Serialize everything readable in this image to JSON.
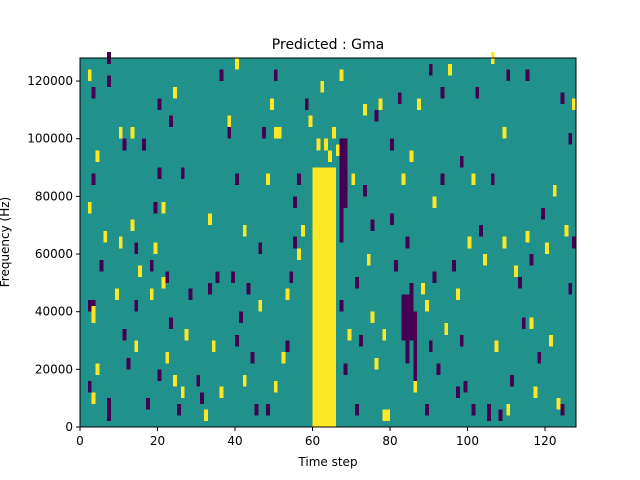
{
  "chart_data": {
    "type": "heatmap",
    "title": "Predicted : Gma",
    "xlabel": "Time step",
    "ylabel": "Frequency (Hz)",
    "xlim": [
      0,
      128
    ],
    "ylim": [
      0,
      128000
    ],
    "grid": false,
    "x_ticks": [
      0,
      20,
      40,
      60,
      80,
      100,
      120
    ],
    "y_ticks": [
      0,
      20000,
      40000,
      60000,
      80000,
      100000,
      120000
    ],
    "n_time_steps": 128,
    "n_freq_bins": 64,
    "colormap": "viridis",
    "cell_colors": {
      "low": "#440154",
      "mid": "#21918c",
      "high": "#fde725"
    },
    "background_level": "mid",
    "bright_band": {
      "level": "high",
      "start_step": 60,
      "end_step": 66,
      "freq_top": 90000
    },
    "dark_columns": [
      {
        "step": 67,
        "freq_from": 64000,
        "freq_to": 100000
      },
      {
        "step": 68,
        "freq_from": 76000,
        "freq_to": 100000
      },
      {
        "step": 83,
        "freq_from": 30000,
        "freq_to": 46000
      },
      {
        "step": 84,
        "freq_from": 22000,
        "freq_to": 46000
      },
      {
        "step": 85,
        "freq_from": 30000,
        "freq_to": 50000
      },
      {
        "step": 86,
        "freq_from": 16000,
        "freq_to": 40000
      }
    ],
    "cells": [
      {
        "t": 7,
        "f": 2000,
        "v": "low"
      },
      {
        "t": 7,
        "f": 4000,
        "v": "low"
      },
      {
        "t": 7,
        "f": 6000,
        "v": "low"
      },
      {
        "t": 2,
        "f": 12000,
        "v": "low"
      },
      {
        "t": 3,
        "f": 8000,
        "v": "high"
      },
      {
        "t": 4,
        "f": 18000,
        "v": "high"
      },
      {
        "t": 2,
        "f": 40000,
        "v": "low"
      },
      {
        "t": 3,
        "f": 40000,
        "v": "low"
      },
      {
        "t": 3,
        "f": 36000,
        "v": "high"
      },
      {
        "t": 3,
        "f": 38000,
        "v": "high"
      },
      {
        "t": 5,
        "f": 54000,
        "v": "low"
      },
      {
        "t": 6,
        "f": 64000,
        "v": "high"
      },
      {
        "t": 2,
        "f": 74000,
        "v": "high"
      },
      {
        "t": 3,
        "f": 84000,
        "v": "low"
      },
      {
        "t": 4,
        "f": 92000,
        "v": "high"
      },
      {
        "t": 2,
        "f": 120000,
        "v": "high"
      },
      {
        "t": 3,
        "f": 114000,
        "v": "low"
      },
      {
        "t": 7,
        "f": 126000,
        "v": "low"
      },
      {
        "t": 7,
        "f": 118000,
        "v": "low"
      },
      {
        "t": 10,
        "f": 100000,
        "v": "high"
      },
      {
        "t": 11,
        "f": 96000,
        "v": "low"
      },
      {
        "t": 13,
        "f": 100000,
        "v": "high"
      },
      {
        "t": 9,
        "f": 44000,
        "v": "high"
      },
      {
        "t": 10,
        "f": 62000,
        "v": "high"
      },
      {
        "t": 11,
        "f": 30000,
        "v": "low"
      },
      {
        "t": 12,
        "f": 20000,
        "v": "low"
      },
      {
        "t": 13,
        "f": 68000,
        "v": "high"
      },
      {
        "t": 14,
        "f": 60000,
        "v": "low"
      },
      {
        "t": 15,
        "f": 52000,
        "v": "high"
      },
      {
        "t": 14,
        "f": 40000,
        "v": "low"
      },
      {
        "t": 14,
        "f": 26000,
        "v": "high"
      },
      {
        "t": 16,
        "f": 96000,
        "v": "low"
      },
      {
        "t": 17,
        "f": 6000,
        "v": "low"
      },
      {
        "t": 18,
        "f": 44000,
        "v": "high"
      },
      {
        "t": 18,
        "f": 54000,
        "v": "low"
      },
      {
        "t": 19,
        "f": 60000,
        "v": "high"
      },
      {
        "t": 19,
        "f": 74000,
        "v": "low"
      },
      {
        "t": 20,
        "f": 110000,
        "v": "low"
      },
      {
        "t": 20,
        "f": 86000,
        "v": "low"
      },
      {
        "t": 21,
        "f": 74000,
        "v": "high"
      },
      {
        "t": 21,
        "f": 48000,
        "v": "high"
      },
      {
        "t": 22,
        "f": 50000,
        "v": "low"
      },
      {
        "t": 22,
        "f": 22000,
        "v": "high"
      },
      {
        "t": 20,
        "f": 16000,
        "v": "low"
      },
      {
        "t": 23,
        "f": 104000,
        "v": "low"
      },
      {
        "t": 24,
        "f": 114000,
        "v": "high"
      },
      {
        "t": 23,
        "f": 34000,
        "v": "low"
      },
      {
        "t": 24,
        "f": 14000,
        "v": "high"
      },
      {
        "t": 25,
        "f": 4000,
        "v": "low"
      },
      {
        "t": 26,
        "f": 10000,
        "v": "high"
      },
      {
        "t": 27,
        "f": 30000,
        "v": "high"
      },
      {
        "t": 26,
        "f": 86000,
        "v": "low"
      },
      {
        "t": 28,
        "f": 44000,
        "v": "low"
      },
      {
        "t": 30,
        "f": 14000,
        "v": "low"
      },
      {
        "t": 31,
        "f": 8000,
        "v": "low"
      },
      {
        "t": 32,
        "f": 2000,
        "v": "high"
      },
      {
        "t": 33,
        "f": 46000,
        "v": "low"
      },
      {
        "t": 33,
        "f": 70000,
        "v": "high"
      },
      {
        "t": 34,
        "f": 26000,
        "v": "high"
      },
      {
        "t": 35,
        "f": 50000,
        "v": "low"
      },
      {
        "t": 36,
        "f": 120000,
        "v": "low"
      },
      {
        "t": 36,
        "f": 10000,
        "v": "high"
      },
      {
        "t": 38,
        "f": 100000,
        "v": "low"
      },
      {
        "t": 38,
        "f": 104000,
        "v": "high"
      },
      {
        "t": 39,
        "f": 50000,
        "v": "low"
      },
      {
        "t": 40,
        "f": 28000,
        "v": "low"
      },
      {
        "t": 40,
        "f": 124000,
        "v": "high"
      },
      {
        "t": 40,
        "f": 84000,
        "v": "low"
      },
      {
        "t": 41,
        "f": 36000,
        "v": "low"
      },
      {
        "t": 42,
        "f": 66000,
        "v": "high"
      },
      {
        "t": 42,
        "f": 14000,
        "v": "high"
      },
      {
        "t": 43,
        "f": 46000,
        "v": "low"
      },
      {
        "t": 44,
        "f": 22000,
        "v": "low"
      },
      {
        "t": 45,
        "f": 4000,
        "v": "low"
      },
      {
        "t": 46,
        "f": 60000,
        "v": "low"
      },
      {
        "t": 46,
        "f": 40000,
        "v": "high"
      },
      {
        "t": 47,
        "f": 100000,
        "v": "low"
      },
      {
        "t": 48,
        "f": 84000,
        "v": "high"
      },
      {
        "t": 48,
        "f": 4000,
        "v": "low"
      },
      {
        "t": 49,
        "f": 110000,
        "v": "high"
      },
      {
        "t": 50,
        "f": 120000,
        "v": "low"
      },
      {
        "t": 50,
        "f": 100000,
        "v": "high"
      },
      {
        "t": 51,
        "f": 100000,
        "v": "high"
      },
      {
        "t": 50,
        "f": 12000,
        "v": "high"
      },
      {
        "t": 52,
        "f": 22000,
        "v": "high"
      },
      {
        "t": 53,
        "f": 44000,
        "v": "high"
      },
      {
        "t": 53,
        "f": 26000,
        "v": "low"
      },
      {
        "t": 54,
        "f": 50000,
        "v": "low"
      },
      {
        "t": 55,
        "f": 76000,
        "v": "low"
      },
      {
        "t": 55,
        "f": 62000,
        "v": "low"
      },
      {
        "t": 56,
        "f": 58000,
        "v": "high"
      },
      {
        "t": 56,
        "f": 84000,
        "v": "low"
      },
      {
        "t": 57,
        "f": 66000,
        "v": "high"
      },
      {
        "t": 58,
        "f": 110000,
        "v": "low"
      },
      {
        "t": 59,
        "f": 104000,
        "v": "high"
      },
      {
        "t": 60,
        "f": 60000,
        "v": "high"
      },
      {
        "t": 61,
        "f": 96000,
        "v": "high"
      },
      {
        "t": 62,
        "f": 116000,
        "v": "high"
      },
      {
        "t": 63,
        "f": 96000,
        "v": "high"
      },
      {
        "t": 64,
        "f": 92000,
        "v": "high"
      },
      {
        "t": 65,
        "f": 100000,
        "v": "high"
      },
      {
        "t": 66,
        "f": 94000,
        "v": "high"
      },
      {
        "t": 67,
        "f": 120000,
        "v": "high"
      },
      {
        "t": 67,
        "f": 40000,
        "v": "low"
      },
      {
        "t": 68,
        "f": 18000,
        "v": "low"
      },
      {
        "t": 69,
        "f": 30000,
        "v": "high"
      },
      {
        "t": 70,
        "f": 84000,
        "v": "high"
      },
      {
        "t": 71,
        "f": 48000,
        "v": "low"
      },
      {
        "t": 71,
        "f": 4000,
        "v": "low"
      },
      {
        "t": 72,
        "f": 28000,
        "v": "low"
      },
      {
        "t": 73,
        "f": 80000,
        "v": "low"
      },
      {
        "t": 73,
        "f": 108000,
        "v": "high"
      },
      {
        "t": 74,
        "f": 56000,
        "v": "high"
      },
      {
        "t": 75,
        "f": 68000,
        "v": "low"
      },
      {
        "t": 75,
        "f": 36000,
        "v": "high"
      },
      {
        "t": 76,
        "f": 20000,
        "v": "high"
      },
      {
        "t": 76,
        "f": 106000,
        "v": "low"
      },
      {
        "t": 77,
        "f": 110000,
        "v": "high"
      },
      {
        "t": 78,
        "f": 30000,
        "v": "high"
      },
      {
        "t": 78,
        "f": 2000,
        "v": "high"
      },
      {
        "t": 79,
        "f": 2000,
        "v": "high"
      },
      {
        "t": 80,
        "f": 70000,
        "v": "low"
      },
      {
        "t": 80,
        "f": 96000,
        "v": "low"
      },
      {
        "t": 81,
        "f": 54000,
        "v": "low"
      },
      {
        "t": 82,
        "f": 112000,
        "v": "low"
      },
      {
        "t": 83,
        "f": 84000,
        "v": "high"
      },
      {
        "t": 84,
        "f": 62000,
        "v": "low"
      },
      {
        "t": 85,
        "f": 92000,
        "v": "high"
      },
      {
        "t": 86,
        "f": 12000,
        "v": "high"
      },
      {
        "t": 87,
        "f": 110000,
        "v": "high"
      },
      {
        "t": 88,
        "f": 46000,
        "v": "high"
      },
      {
        "t": 89,
        "f": 40000,
        "v": "high"
      },
      {
        "t": 89,
        "f": 4000,
        "v": "low"
      },
      {
        "t": 90,
        "f": 122000,
        "v": "low"
      },
      {
        "t": 90,
        "f": 26000,
        "v": "low"
      },
      {
        "t": 91,
        "f": 76000,
        "v": "high"
      },
      {
        "t": 91,
        "f": 50000,
        "v": "low"
      },
      {
        "t": 92,
        "f": 18000,
        "v": "low"
      },
      {
        "t": 93,
        "f": 114000,
        "v": "low"
      },
      {
        "t": 93,
        "f": 84000,
        "v": "low"
      },
      {
        "t": 94,
        "f": 32000,
        "v": "high"
      },
      {
        "t": 95,
        "f": 122000,
        "v": "high"
      },
      {
        "t": 96,
        "f": 54000,
        "v": "low"
      },
      {
        "t": 97,
        "f": 44000,
        "v": "high"
      },
      {
        "t": 97,
        "f": 10000,
        "v": "low"
      },
      {
        "t": 98,
        "f": 28000,
        "v": "low"
      },
      {
        "t": 98,
        "f": 90000,
        "v": "low"
      },
      {
        "t": 99,
        "f": 12000,
        "v": "low"
      },
      {
        "t": 100,
        "f": 62000,
        "v": "high"
      },
      {
        "t": 101,
        "f": 84000,
        "v": "high"
      },
      {
        "t": 101,
        "f": 4000,
        "v": "low"
      },
      {
        "t": 102,
        "f": 114000,
        "v": "low"
      },
      {
        "t": 103,
        "f": 66000,
        "v": "low"
      },
      {
        "t": 104,
        "f": 56000,
        "v": "high"
      },
      {
        "t": 105,
        "f": 2000,
        "v": "low"
      },
      {
        "t": 105,
        "f": 4000,
        "v": "low"
      },
      {
        "t": 106,
        "f": 126000,
        "v": "high"
      },
      {
        "t": 106,
        "f": 84000,
        "v": "low"
      },
      {
        "t": 107,
        "f": 26000,
        "v": "high"
      },
      {
        "t": 108,
        "f": 2000,
        "v": "low"
      },
      {
        "t": 109,
        "f": 100000,
        "v": "high"
      },
      {
        "t": 109,
        "f": 62000,
        "v": "high"
      },
      {
        "t": 110,
        "f": 120000,
        "v": "low"
      },
      {
        "t": 110,
        "f": 4000,
        "v": "high"
      },
      {
        "t": 111,
        "f": 14000,
        "v": "low"
      },
      {
        "t": 112,
        "f": 52000,
        "v": "high"
      },
      {
        "t": 113,
        "f": 48000,
        "v": "low"
      },
      {
        "t": 114,
        "f": 34000,
        "v": "low"
      },
      {
        "t": 115,
        "f": 120000,
        "v": "low"
      },
      {
        "t": 115,
        "f": 64000,
        "v": "high"
      },
      {
        "t": 116,
        "f": 34000,
        "v": "high"
      },
      {
        "t": 116,
        "f": 56000,
        "v": "low"
      },
      {
        "t": 117,
        "f": 10000,
        "v": "high"
      },
      {
        "t": 118,
        "f": 22000,
        "v": "low"
      },
      {
        "t": 119,
        "f": 72000,
        "v": "low"
      },
      {
        "t": 120,
        "f": 60000,
        "v": "high"
      },
      {
        "t": 121,
        "f": 28000,
        "v": "high"
      },
      {
        "t": 122,
        "f": 80000,
        "v": "high"
      },
      {
        "t": 123,
        "f": 6000,
        "v": "high"
      },
      {
        "t": 124,
        "f": 4000,
        "v": "low"
      },
      {
        "t": 124,
        "f": 112000,
        "v": "low"
      },
      {
        "t": 125,
        "f": 66000,
        "v": "high"
      },
      {
        "t": 126,
        "f": 98000,
        "v": "low"
      },
      {
        "t": 126,
        "f": 46000,
        "v": "low"
      },
      {
        "t": 127,
        "f": 62000,
        "v": "low"
      },
      {
        "t": 127,
        "f": 110000,
        "v": "high"
      }
    ]
  }
}
